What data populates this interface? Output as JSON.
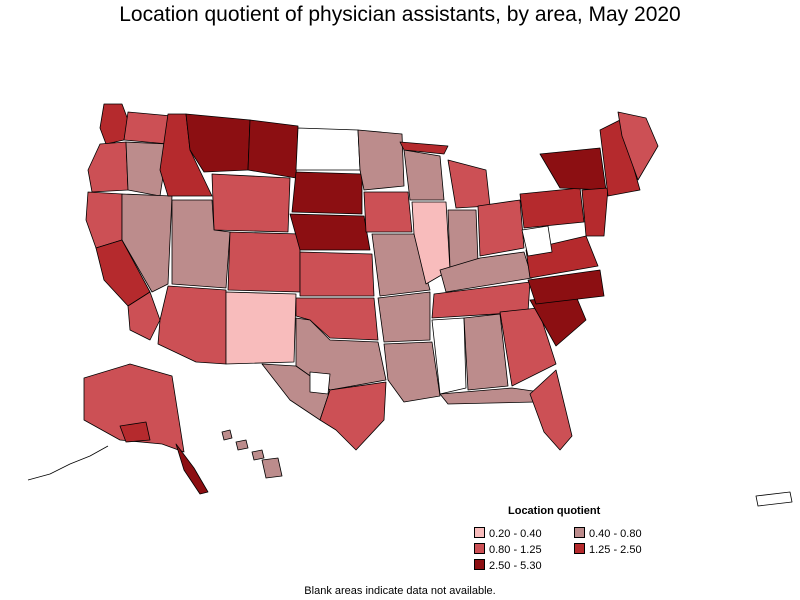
{
  "title": "Location quotient of physician assistants, by area, May 2020",
  "legend": {
    "title": "Location quotient",
    "items": [
      {
        "label": "0.20 - 0.40",
        "color": "#f8bcbc"
      },
      {
        "label": "0.40 - 0.80",
        "color": "#bc8c8c"
      },
      {
        "label": "0.80 - 1.25",
        "color": "#cc5055"
      },
      {
        "label": "1.25 - 2.50",
        "color": "#b52a2d"
      },
      {
        "label": "2.50 - 5.30",
        "color": "#8c0f12"
      }
    ]
  },
  "footnote": "Blank areas indicate data not available."
}
